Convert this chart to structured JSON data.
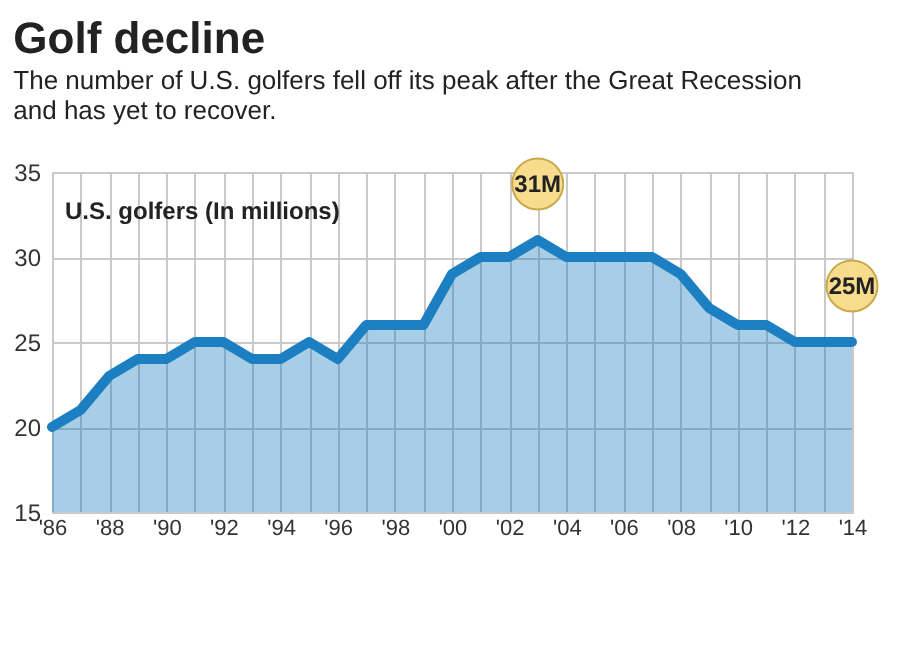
{
  "chart_data": {
    "type": "area",
    "title": "Golf decline",
    "subtitle": "The number of U.S. golfers fell off its peak after the Great Recession and has yet to recover.",
    "ylabel": "U.S. golfers (In millions)",
    "x": [
      1986,
      1987,
      1988,
      1989,
      1990,
      1991,
      1992,
      1993,
      1994,
      1995,
      1996,
      1997,
      1998,
      1999,
      2000,
      2001,
      2002,
      2003,
      2004,
      2005,
      2006,
      2007,
      2008,
      2009,
      2010,
      2011,
      2012,
      2013,
      2014
    ],
    "series": [
      {
        "color": "#1b7fc1",
        "values": [
          20,
          21,
          23,
          24,
          24,
          25,
          25,
          24,
          24,
          25,
          24,
          26,
          26,
          26,
          29,
          30,
          30,
          31,
          30,
          30,
          30,
          30,
          29,
          27,
          26,
          26,
          25,
          25,
          25
        ]
      }
    ],
    "xlim": [
      1986,
      2014
    ],
    "xticks": [
      {
        "value": 1986,
        "label": "'86"
      },
      {
        "value": 1987,
        "label": null
      },
      {
        "value": 1988,
        "label": "'88"
      },
      {
        "value": 1989,
        "label": null
      },
      {
        "value": 1990,
        "label": "'90"
      },
      {
        "value": 1991,
        "label": null
      },
      {
        "value": 1992,
        "label": "'92"
      },
      {
        "value": 1993,
        "label": null
      },
      {
        "value": 1994,
        "label": "'94"
      },
      {
        "value": 1995,
        "label": null
      },
      {
        "value": 1996,
        "label": "'96"
      },
      {
        "value": 1997,
        "label": null
      },
      {
        "value": 1998,
        "label": "'98"
      },
      {
        "value": 1999,
        "label": null
      },
      {
        "value": 2000,
        "label": "'00"
      },
      {
        "value": 2001,
        "label": null
      },
      {
        "value": 2002,
        "label": "'02"
      },
      {
        "value": 2003,
        "label": null
      },
      {
        "value": 2004,
        "label": "'04"
      },
      {
        "value": 2005,
        "label": null
      },
      {
        "value": 2006,
        "label": "'06"
      },
      {
        "value": 2007,
        "label": null
      },
      {
        "value": 2008,
        "label": "'08"
      },
      {
        "value": 2009,
        "label": null
      },
      {
        "value": 2010,
        "label": "'10"
      },
      {
        "value": 2011,
        "label": null
      },
      {
        "value": 2012,
        "label": "'12"
      },
      {
        "value": 2013,
        "label": null
      },
      {
        "value": 2014,
        "label": "'14"
      }
    ],
    "ylim": [
      15,
      35
    ],
    "yticks": [
      15,
      20,
      25,
      30,
      35
    ],
    "grid": true,
    "annotations": [
      {
        "text": "31M",
        "x": 2003,
        "y": 31
      },
      {
        "text": "25M",
        "x": 2014,
        "y": 25
      }
    ]
  }
}
